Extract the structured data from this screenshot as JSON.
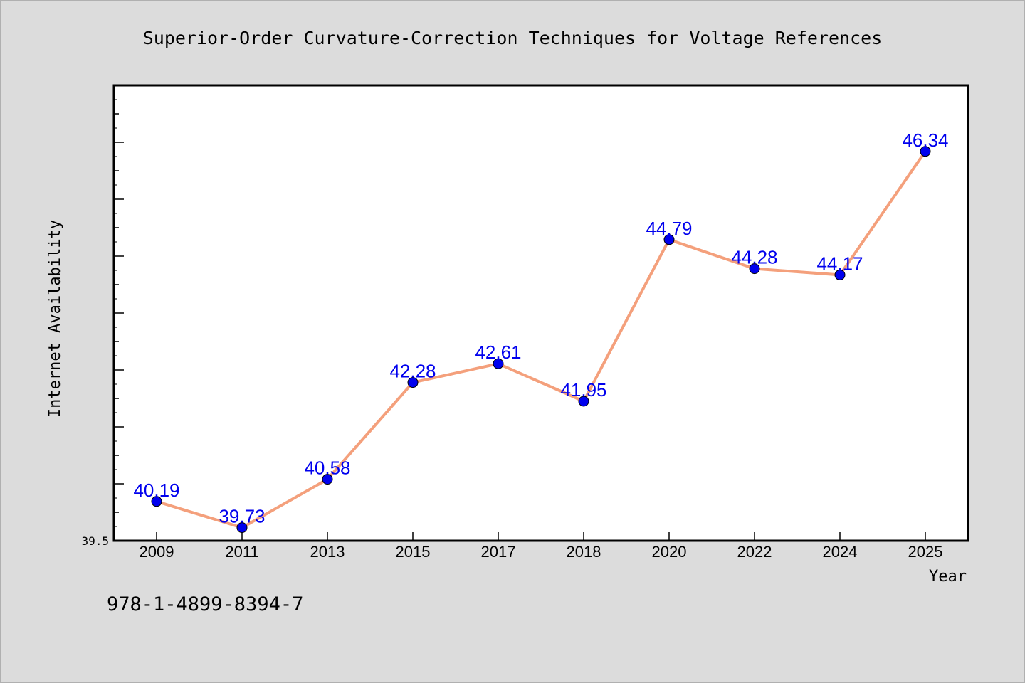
{
  "chart_data": {
    "type": "line",
    "title": "Superior-Order Curvature-Correction Techniques for Voltage References",
    "xlabel": "Year",
    "ylabel": "Internet Availability",
    "categories": [
      "2009",
      "2011",
      "2013",
      "2015",
      "2017",
      "2018",
      "2020",
      "2022",
      "2024",
      "2025"
    ],
    "values": [
      40.19,
      39.73,
      40.58,
      42.28,
      42.61,
      41.95,
      44.79,
      44.28,
      44.17,
      46.34
    ],
    "data_labels": [
      "40.19",
      "39.73",
      "40.58",
      "42.28",
      "42.61",
      "41.95",
      "44.79",
      "44.28",
      "44.17",
      "46.34"
    ],
    "ytick_label": "39.5",
    "ylim": [
      39.5,
      47.5
    ],
    "grid": false,
    "line_color": "#f4a07c",
    "marker_color": "#0000ee",
    "label_color": "#0000ee",
    "background_color": "#dcdcdc",
    "plot_background": "#ffffff"
  },
  "footer": {
    "isbn": "978-1-4899-8394-7"
  }
}
